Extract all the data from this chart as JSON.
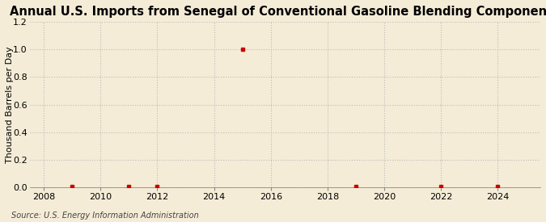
{
  "title": "Annual U.S. Imports from Senegal of Conventional Gasoline Blending Components",
  "ylabel": "Thousand Barrels per Day",
  "source": "Source: U.S. Energy Information Administration",
  "background_color": "#f5ecd7",
  "plot_bg_color": "#f5ecd7",
  "data_points": {
    "years": [
      2009,
      2011,
      2012,
      2015,
      2019,
      2022,
      2024
    ],
    "values": [
      0.003,
      0.003,
      0.003,
      1.0,
      0.003,
      0.003,
      0.003
    ]
  },
  "xlim": [
    2007.5,
    2025.5
  ],
  "ylim": [
    0.0,
    1.2
  ],
  "xticks": [
    2008,
    2010,
    2012,
    2014,
    2016,
    2018,
    2020,
    2022,
    2024
  ],
  "yticks": [
    0.0,
    0.2,
    0.4,
    0.6,
    0.8,
    1.0,
    1.2
  ],
  "marker_color": "#cc0000",
  "marker_size": 3.5,
  "grid_color": "#bbbbbb",
  "title_fontsize": 10.5,
  "label_fontsize": 8,
  "tick_fontsize": 8,
  "source_fontsize": 7
}
